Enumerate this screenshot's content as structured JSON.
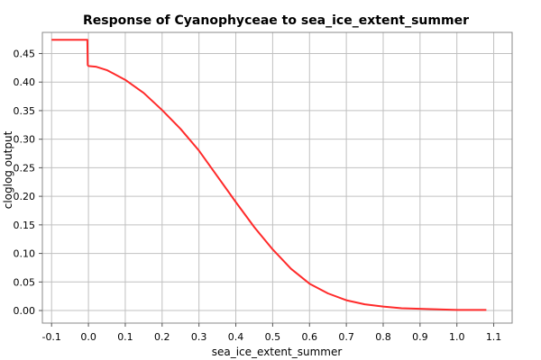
{
  "chart_data": {
    "type": "line",
    "title": "Response of Cyanophyceae to sea_ice_extent_summer",
    "xlabel": "sea_ice_extent_summer",
    "ylabel": "cloglog output",
    "xlim": [
      -0.125,
      1.15
    ],
    "ylim": [
      -0.022,
      0.487
    ],
    "x_ticks": [
      "-0.1",
      "0.0",
      "0.1",
      "0.2",
      "0.3",
      "0.4",
      "0.5",
      "0.6",
      "0.7",
      "0.8",
      "0.9",
      "1.0",
      "1.1"
    ],
    "y_ticks": [
      "0.00",
      "0.05",
      "0.10",
      "0.15",
      "0.20",
      "0.25",
      "0.30",
      "0.35",
      "0.40",
      "0.45"
    ],
    "grid": true,
    "line_color": "#ff2a2a",
    "series": [
      {
        "x": [
          -0.1,
          -0.05,
          -0.003,
          -0.002,
          0.0,
          0.02,
          0.05,
          0.1,
          0.15,
          0.2,
          0.25,
          0.3,
          0.35,
          0.4,
          0.45,
          0.5,
          0.55,
          0.6,
          0.65,
          0.7,
          0.75,
          0.8,
          0.85,
          0.9,
          0.95,
          1.0,
          1.05,
          1.08
        ],
        "y": [
          0.474,
          0.474,
          0.474,
          0.43,
          0.428,
          0.427,
          0.421,
          0.404,
          0.381,
          0.351,
          0.318,
          0.28,
          0.235,
          0.19,
          0.146,
          0.107,
          0.073,
          0.047,
          0.03,
          0.018,
          0.011,
          0.007,
          0.004,
          0.003,
          0.002,
          0.001,
          0.001,
          0.001
        ]
      }
    ]
  }
}
